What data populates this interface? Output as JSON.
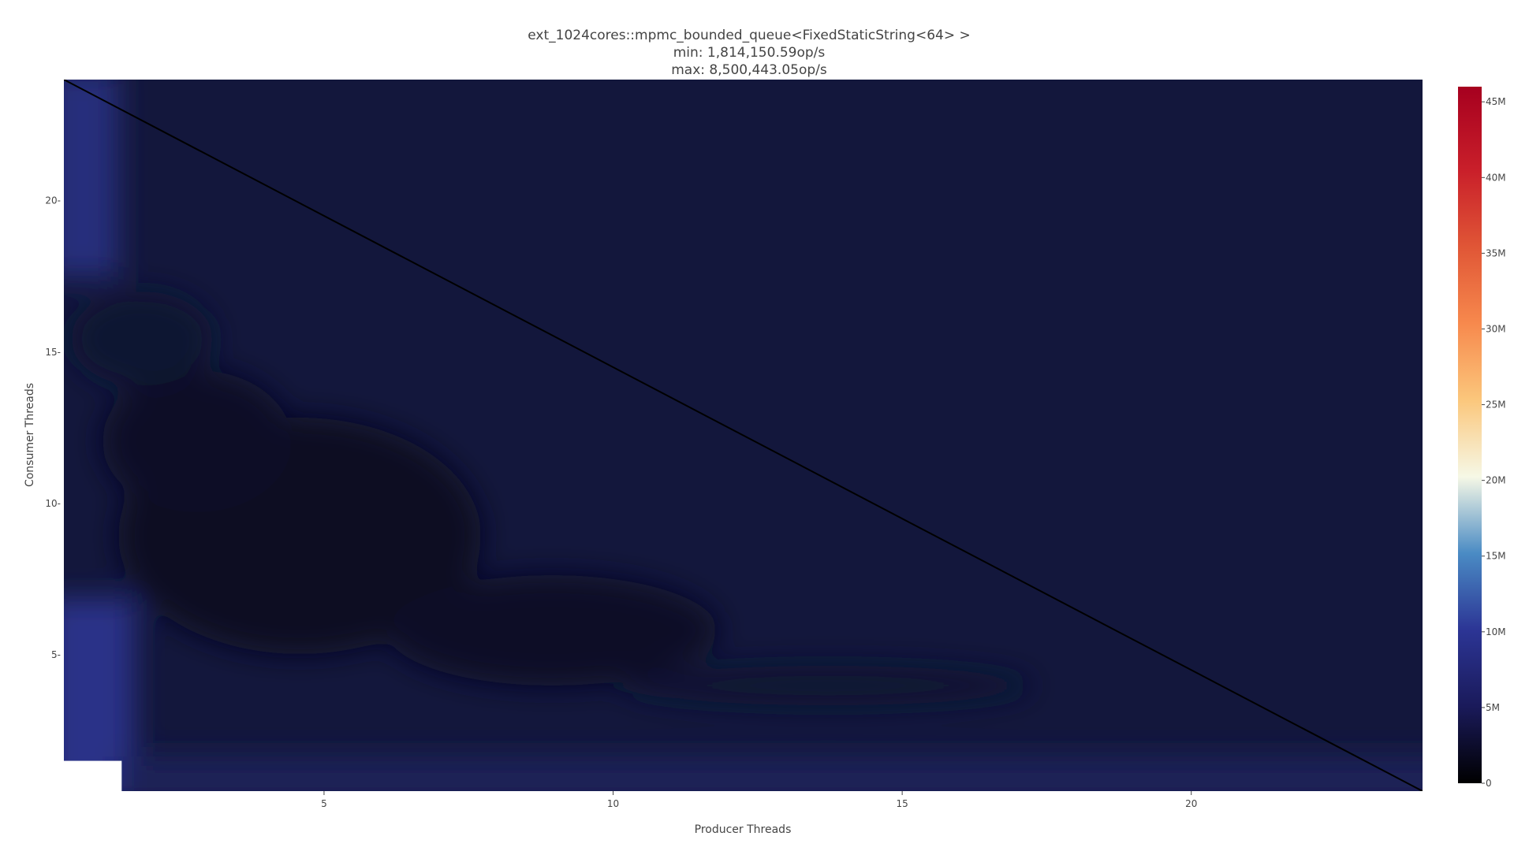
{
  "chart_data": {
    "type": "heatmap",
    "title": "ext_1024cores::mpmc_bounded_queue<FixedStaticString<64> >",
    "subtitle_lines": [
      "min: 1,814,150.59op/s",
      "max: 8,500,443.05op/s"
    ],
    "xlabel": "Producer Threads",
    "ylabel": "Consumer Threads",
    "x_range": [
      0.5,
      24
    ],
    "y_range": [
      0.5,
      24
    ],
    "x_ticks": [
      5,
      10,
      15,
      20
    ],
    "y_ticks": [
      5,
      10,
      15,
      20
    ],
    "x_tick_labels": [
      "5",
      "10",
      "15",
      "20"
    ],
    "y_tick_labels": [
      "5-",
      "10-",
      "15-",
      "20-"
    ],
    "missing_cells": [
      [
        1,
        1
      ]
    ],
    "diagonal_line": {
      "from": [
        0.5,
        24
      ],
      "to": [
        24,
        0.5
      ],
      "color": "#000000"
    },
    "colorbar": {
      "min": 0,
      "max": 46000000,
      "ticks": [
        0,
        5000000,
        10000000,
        15000000,
        20000000,
        25000000,
        30000000,
        35000000,
        40000000,
        45000000
      ],
      "tick_labels": [
        "0",
        "5M",
        "10M",
        "15M",
        "20M",
        "25M",
        "30M",
        "35M",
        "40M",
        "45M"
      ],
      "colorscale": [
        [
          0.0,
          "#000000"
        ],
        [
          0.11,
          "#1a1a5a"
        ],
        [
          0.22,
          "#2c3595"
        ],
        [
          0.33,
          "#4a8bc4"
        ],
        [
          0.44,
          "#f6f8e6"
        ],
        [
          0.55,
          "#fbc77c"
        ],
        [
          0.66,
          "#f7894d"
        ],
        [
          0.77,
          "#e05636"
        ],
        [
          0.88,
          "#c91f2a"
        ],
        [
          1.0,
          "#a6001f"
        ]
      ]
    }
  }
}
